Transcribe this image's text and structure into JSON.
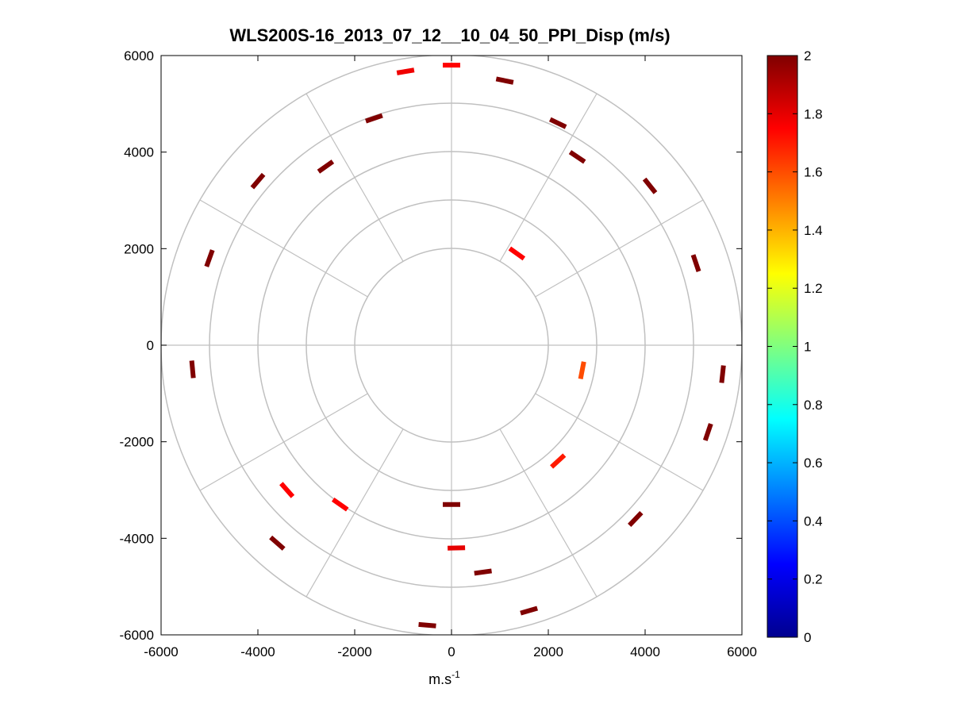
{
  "chart_data": {
    "type": "polar_ppi_scatter",
    "title": "WLS200S-16_2013_07_12__10_04_50_PPI_Disp (m/s)",
    "xlabel": "m.s",
    "xlabel_superscript": "-1",
    "ylabel": "",
    "xlim": [
      -6000,
      6000
    ],
    "ylim": [
      -6000,
      6000
    ],
    "xticks": [
      -6000,
      -4000,
      -2000,
      0,
      2000,
      4000,
      6000
    ],
    "yticks": [
      6000,
      4000,
      2000,
      0,
      -2000,
      -4000,
      -6000
    ],
    "xtick_labels": [
      "-6000",
      "-4000",
      "-2000",
      "0",
      "2000",
      "4000",
      "6000"
    ],
    "ytick_labels": [
      "6000",
      "4000",
      "2000",
      "0",
      "-2000",
      "-4000",
      "-6000"
    ],
    "polar_grid_radii": [
      2000,
      3000,
      4000,
      5000,
      6000
    ],
    "polar_grid_angles_deg": [
      0,
      30,
      60,
      90,
      120,
      150,
      180,
      210,
      240,
      270,
      300,
      330
    ],
    "colorbar": {
      "min": 0,
      "max": 2,
      "ticks": [
        0,
        0.2,
        0.4,
        0.6,
        0.8,
        1,
        1.2,
        1.4,
        1.6,
        1.8,
        2
      ],
      "tick_labels": [
        "0",
        "0.2",
        "0.4",
        "0.6",
        "0.8",
        "1",
        "1.2",
        "1.4",
        "1.6",
        "1.8",
        "2"
      ],
      "colormap": "jet"
    },
    "points": [
      {
        "x": 0,
        "y": 5800,
        "v": 1.75
      },
      {
        "x": -950,
        "y": 5670,
        "v": 1.78
      },
      {
        "x": 1100,
        "y": 5480,
        "v": 2.0
      },
      {
        "x": -1600,
        "y": 4700,
        "v": 2.0
      },
      {
        "x": 2200,
        "y": 4600,
        "v": 2.0
      },
      {
        "x": -4000,
        "y": 3400,
        "v": 2.0
      },
      {
        "x": 4100,
        "y": 3300,
        "v": 2.0
      },
      {
        "x": -5000,
        "y": 1800,
        "v": 2.0
      },
      {
        "x": 5050,
        "y": 1700,
        "v": 2.0
      },
      {
        "x": -5350,
        "y": -500,
        "v": 2.0
      },
      {
        "x": 5600,
        "y": -600,
        "v": 2.0
      },
      {
        "x": -3400,
        "y": -3000,
        "v": 1.75
      },
      {
        "x": -2300,
        "y": -3300,
        "v": 1.75
      },
      {
        "x": 2200,
        "y": -2400,
        "v": 1.7
      },
      {
        "x": 2700,
        "y": -520,
        "v": 1.6
      },
      {
        "x": 1350,
        "y": 1900,
        "v": 1.75
      },
      {
        "x": 100,
        "y": -4200,
        "v": 1.8
      },
      {
        "x": 0,
        "y": -3300,
        "v": 2.0
      },
      {
        "x": 650,
        "y": -4700,
        "v": 2.0
      },
      {
        "x": 1600,
        "y": -5500,
        "v": 2.0
      },
      {
        "x": -500,
        "y": -5800,
        "v": 2.0
      },
      {
        "x": -3600,
        "y": -4100,
        "v": 2.0
      },
      {
        "x": 3800,
        "y": -3600,
        "v": 2.0
      },
      {
        "x": 5300,
        "y": -1800,
        "v": 2.0
      },
      {
        "x": -2600,
        "y": 3700,
        "v": 2.0
      },
      {
        "x": 2600,
        "y": 3900,
        "v": 2.0
      }
    ]
  }
}
